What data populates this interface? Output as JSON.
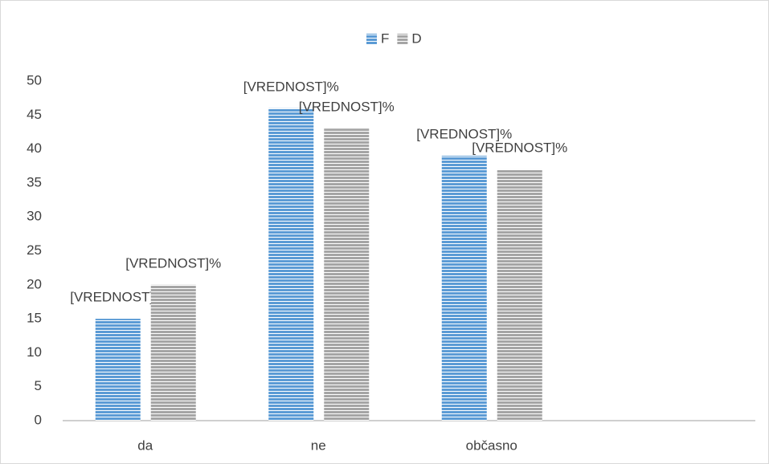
{
  "chart_data": {
    "type": "bar",
    "categories": [
      "da",
      "ne",
      "občasno",
      null
    ],
    "series": [
      {
        "name": "F",
        "color": "#5b9bd5",
        "values": [
          15,
          46,
          39,
          null
        ],
        "value_labels": [
          "[VREDNOST]%",
          "[VREDNOST]%",
          "[VREDNOST]%",
          null
        ]
      },
      {
        "name": "D",
        "color": "#a5a5a5",
        "values": [
          20,
          43,
          37,
          null
        ],
        "value_labels": [
          "[VREDNOST]%",
          "[VREDNOST]%",
          "[VREDNOST]%",
          null
        ]
      }
    ],
    "ylim": [
      0,
      50
    ],
    "yticks": [
      0,
      5,
      10,
      15,
      20,
      25,
      30,
      35,
      40,
      45,
      50
    ],
    "legend": "top",
    "grid": false
  }
}
